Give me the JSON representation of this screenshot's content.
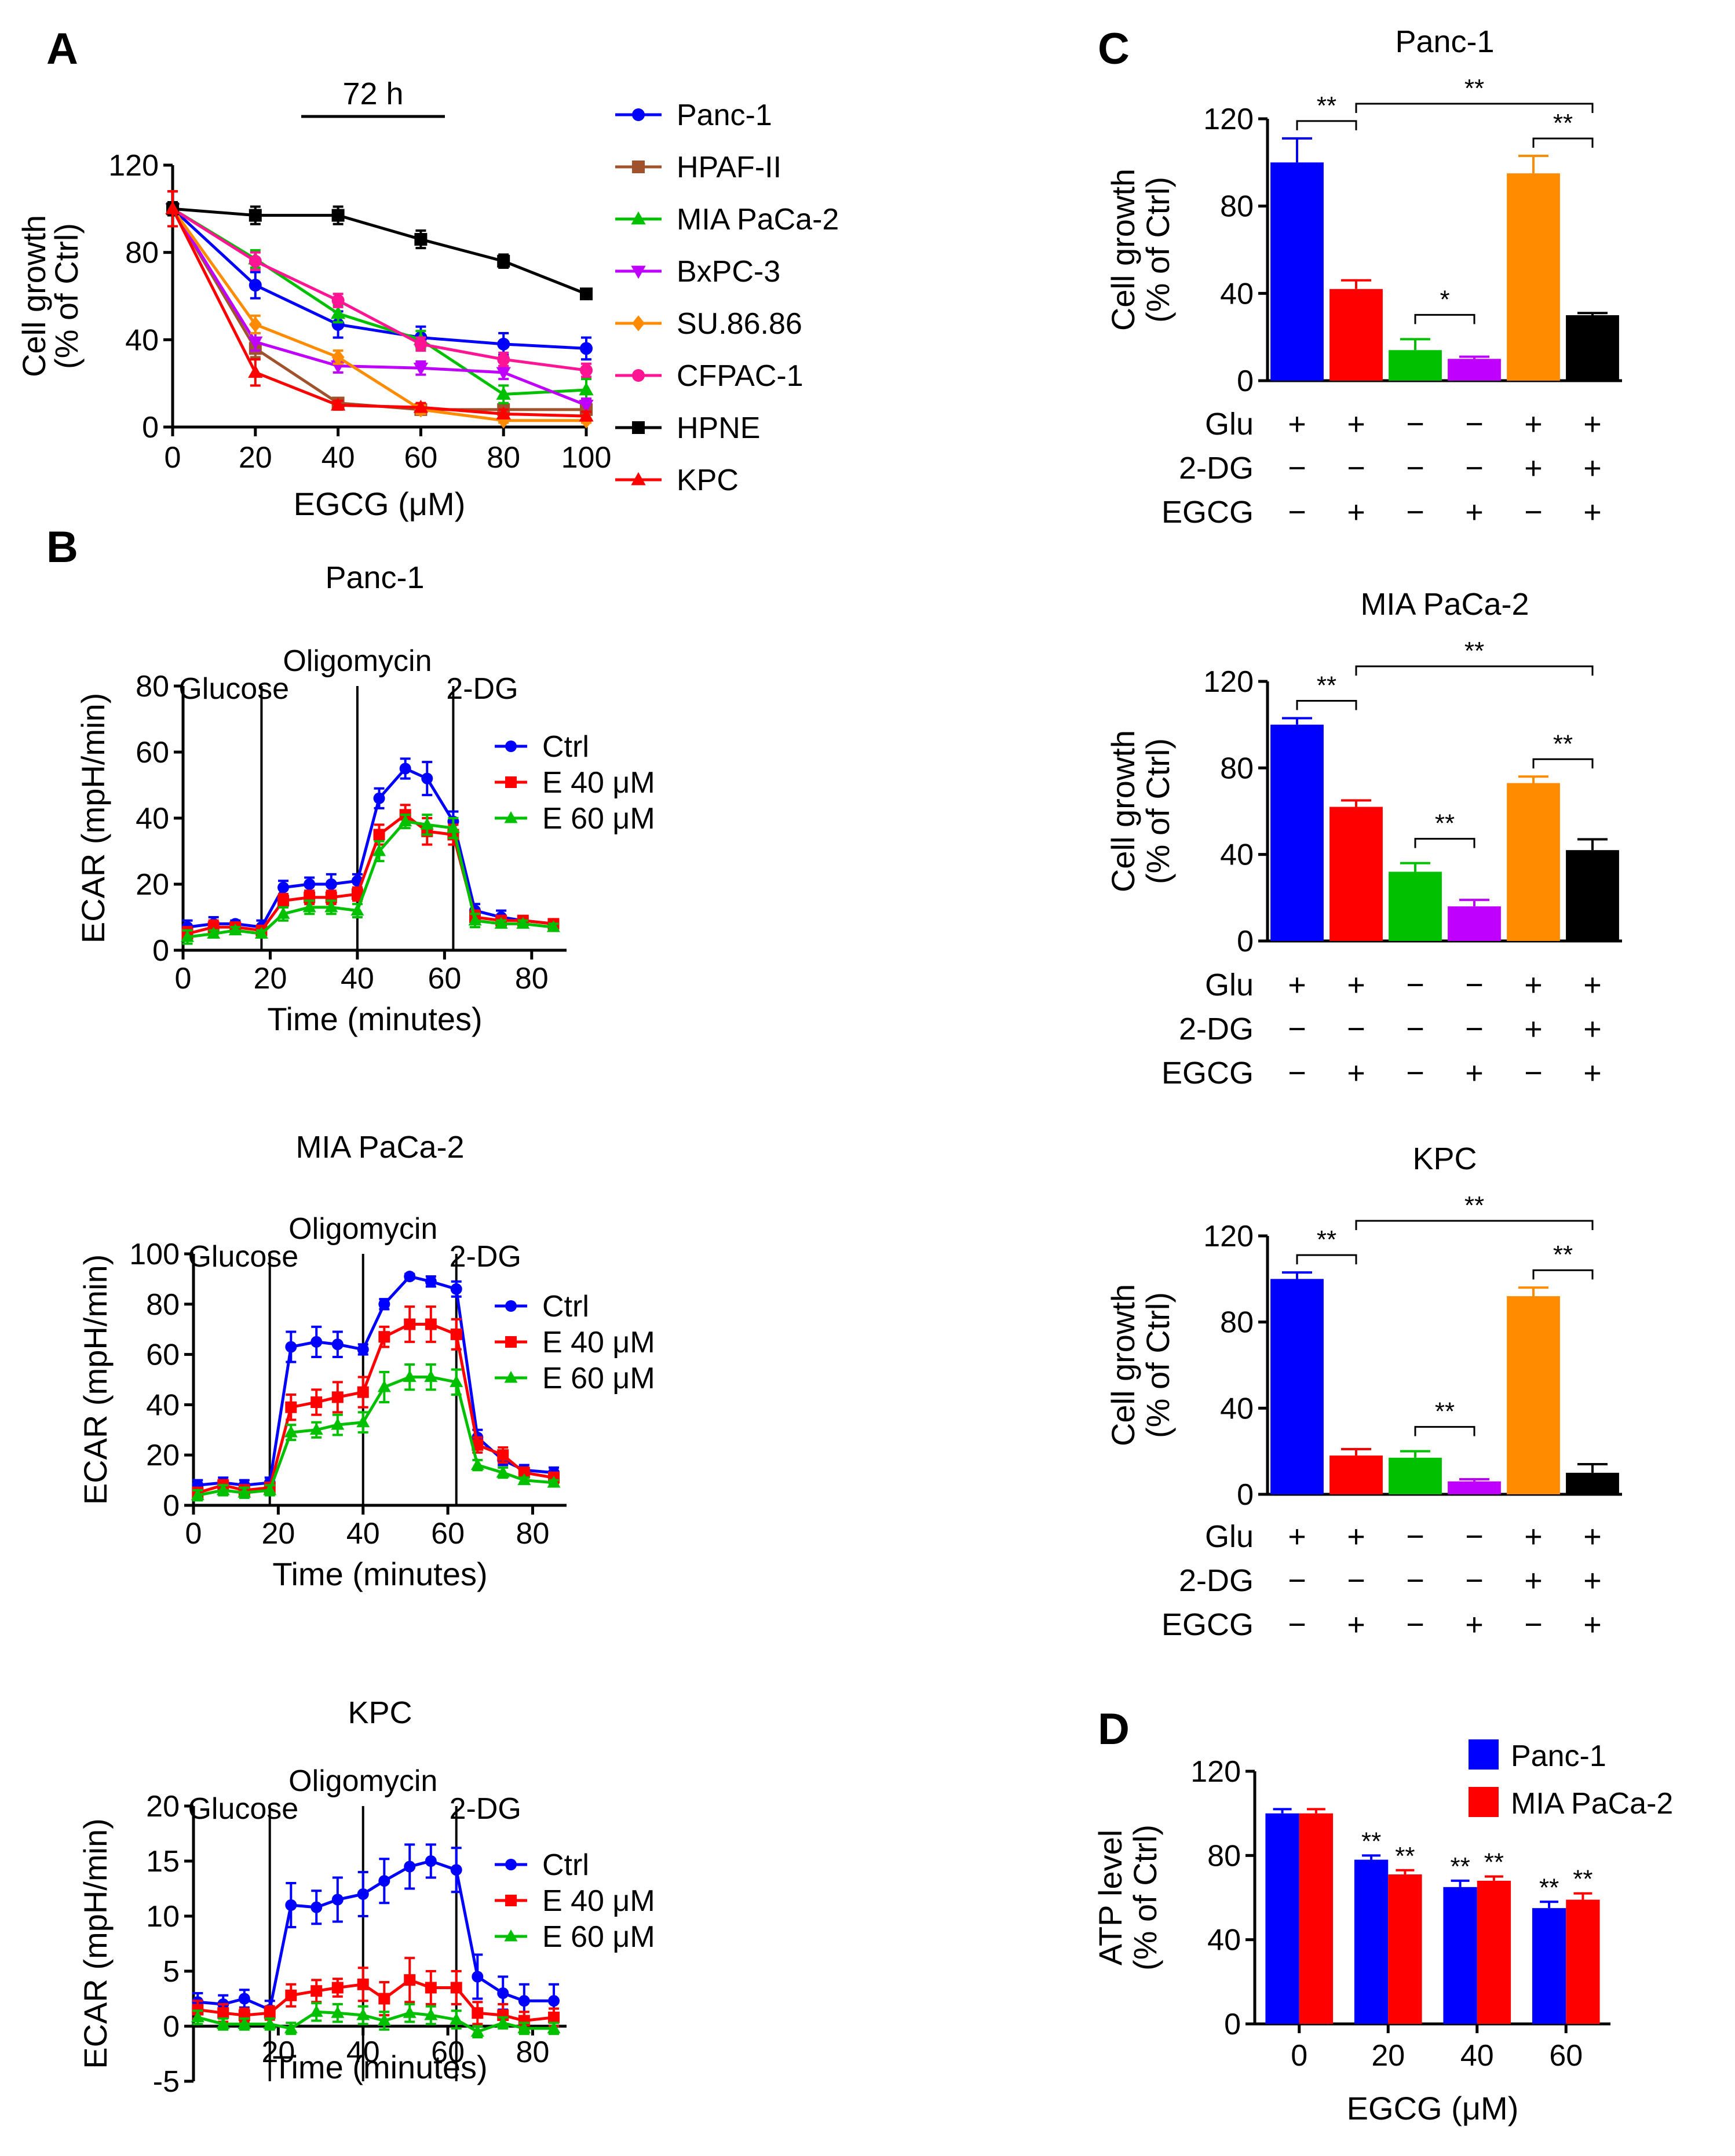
{
  "chart_data": [
    {
      "id": "A",
      "letter": "A",
      "type": "line",
      "annotation": "72 h",
      "xlabel": "EGCG (μM)",
      "ylabel": [
        "Cell growth",
        "(% of Ctrl)"
      ],
      "xlim": [
        0,
        100
      ],
      "ylim": [
        0,
        120
      ],
      "xticks": [
        0,
        20,
        40,
        60,
        80,
        100
      ],
      "yticks": [
        0,
        40,
        80,
        120
      ],
      "x": [
        0,
        20,
        40,
        60,
        80,
        100
      ],
      "legend_position": "right",
      "series": [
        {
          "name": "Panc-1",
          "color": "#0000ff",
          "marker": "circle",
          "values": [
            100,
            65,
            47,
            41,
            38,
            36
          ],
          "err": [
            8,
            6,
            6,
            5,
            5,
            5
          ]
        },
        {
          "name": "HPAF-II",
          "color": "#a0522d",
          "marker": "square",
          "values": [
            100,
            36,
            11,
            8,
            8,
            8
          ],
          "err": [
            8,
            4,
            2,
            2,
            2,
            2
          ]
        },
        {
          "name": "MIA PaCa-2",
          "color": "#00c000",
          "marker": "triangle-up",
          "values": [
            100,
            77,
            52,
            40,
            15,
            17
          ],
          "err": [
            8,
            4,
            4,
            4,
            4,
            5
          ]
        },
        {
          "name": "BxPC-3",
          "color": "#c000ff",
          "marker": "triangle-down",
          "values": [
            100,
            39,
            28,
            27,
            25,
            10
          ],
          "err": [
            8,
            4,
            3,
            3,
            3,
            3
          ]
        },
        {
          "name": "SU.86.86",
          "color": "#ff8c00",
          "marker": "diamond",
          "values": [
            100,
            47,
            32,
            8,
            3,
            3
          ],
          "err": [
            8,
            4,
            3,
            2,
            1,
            1
          ]
        },
        {
          "name": "CFPAC-1",
          "color": "#ff1493",
          "marker": "circle",
          "values": [
            100,
            76,
            58,
            38,
            31,
            26
          ],
          "err": [
            8,
            4,
            3,
            3,
            3,
            3
          ]
        },
        {
          "name": "HPNE",
          "color": "#000000",
          "marker": "square",
          "values": [
            100,
            97,
            97,
            86,
            76,
            61
          ],
          "err": [
            3,
            4,
            4,
            4,
            3,
            2
          ]
        },
        {
          "name": "KPC",
          "color": "#ff0000",
          "marker": "triangle-up",
          "values": [
            100,
            25,
            10,
            9,
            6,
            5
          ],
          "err": [
            8,
            6,
            2,
            2,
            2,
            2
          ]
        }
      ]
    },
    {
      "id": "B1",
      "letter": "B",
      "type": "line",
      "title": "Panc-1",
      "xlabel": "Time (minutes)",
      "ylabel": "ECAR (mpH/min)",
      "xlim": [
        0,
        88
      ],
      "ylim": [
        0,
        80
      ],
      "xticks": [
        0,
        20,
        40,
        60,
        80
      ],
      "yticks": [
        0,
        20,
        40,
        60,
        80
      ],
      "events": [
        {
          "x": 18,
          "label": "Glucose"
        },
        {
          "x": 40,
          "label": "Oligomycin"
        },
        {
          "x": 62,
          "label": "2-DG"
        }
      ],
      "x": [
        1,
        7,
        12,
        18,
        23,
        29,
        34,
        40,
        45,
        51,
        56,
        62,
        67,
        73,
        78,
        85
      ],
      "legend_position": "right",
      "series": [
        {
          "name": "Ctrl",
          "color": "#0000ff",
          "marker": "circle",
          "values": [
            7,
            8,
            8,
            7,
            19,
            20,
            20,
            21,
            46,
            55,
            52,
            39,
            12,
            10,
            9,
            8
          ],
          "err": [
            2,
            2,
            1,
            2,
            2,
            2,
            3,
            2,
            3,
            3,
            5,
            3,
            2,
            2,
            1,
            1
          ]
        },
        {
          "name": "E 40 μM",
          "color": "#ff0000",
          "marker": "square",
          "values": [
            5,
            7,
            7,
            6,
            15,
            16,
            16,
            17,
            35,
            41,
            36,
            35,
            10,
            9,
            9,
            8
          ],
          "err": [
            2,
            2,
            1,
            1,
            2,
            2,
            2,
            2,
            3,
            3,
            4,
            3,
            2,
            1,
            1,
            1
          ]
        },
        {
          "name": "E 60 μM",
          "color": "#00c000",
          "marker": "triangle-up",
          "values": [
            4,
            5,
            6,
            5,
            11,
            13,
            13,
            12,
            30,
            39,
            38,
            37,
            9,
            8,
            8,
            7
          ],
          "err": [
            2,
            1,
            1,
            1,
            2,
            2,
            2,
            2,
            3,
            2,
            3,
            3,
            2,
            1,
            1,
            1
          ]
        }
      ]
    },
    {
      "id": "B2",
      "type": "line",
      "title": "MIA PaCa-2",
      "xlabel": "Time (minutes)",
      "ylabel": "ECAR (mpH/min)",
      "xlim": [
        0,
        88
      ],
      "ylim": [
        0,
        100
      ],
      "xticks": [
        0,
        20,
        40,
        60,
        80
      ],
      "yticks": [
        0,
        20,
        40,
        60,
        80,
        100
      ],
      "events": [
        {
          "x": 18,
          "label": "Glucose"
        },
        {
          "x": 40,
          "label": "Oligomycin"
        },
        {
          "x": 62,
          "label": "2-DG"
        }
      ],
      "x": [
        1,
        7,
        12,
        18,
        23,
        29,
        34,
        40,
        45,
        51,
        56,
        62,
        67,
        73,
        78,
        85
      ],
      "legend_position": "right",
      "series": [
        {
          "name": "Ctrl",
          "color": "#0000ff",
          "marker": "circle",
          "values": [
            8,
            9,
            8,
            9,
            63,
            65,
            64,
            62,
            80,
            91,
            89,
            86,
            27,
            18,
            14,
            13
          ],
          "err": [
            2,
            2,
            2,
            2,
            6,
            6,
            5,
            2,
            2,
            1,
            2,
            3,
            3,
            2,
            2,
            2
          ]
        },
        {
          "name": "E 40 μM",
          "color": "#ff0000",
          "marker": "square",
          "values": [
            5,
            8,
            6,
            7,
            39,
            41,
            43,
            45,
            67,
            72,
            72,
            68,
            24,
            20,
            13,
            11
          ],
          "err": [
            2,
            2,
            2,
            2,
            5,
            5,
            6,
            6,
            4,
            7,
            7,
            6,
            3,
            3,
            2,
            2
          ]
        },
        {
          "name": "E 60 μM",
          "color": "#00c000",
          "marker": "triangle-up",
          "values": [
            4,
            6,
            5,
            6,
            29,
            30,
            32,
            33,
            47,
            51,
            51,
            49,
            16,
            13,
            10,
            9
          ],
          "err": [
            2,
            2,
            2,
            2,
            3,
            3,
            4,
            4,
            6,
            5,
            5,
            5,
            2,
            2,
            1,
            1
          ]
        }
      ]
    },
    {
      "id": "B3",
      "type": "line",
      "title": "KPC",
      "xlabel": "Time (minutes)",
      "ylabel": "ECAR (mpH/min)",
      "xlim": [
        0,
        88
      ],
      "ylim": [
        -5,
        20
      ],
      "xticks": [
        20,
        40,
        60,
        80
      ],
      "yticks": [
        -5,
        0,
        5,
        10,
        15,
        20
      ],
      "events": [
        {
          "x": 18,
          "label": "Glucose"
        },
        {
          "x": 40,
          "label": "Oligomycin"
        },
        {
          "x": 62,
          "label": "2-DG"
        }
      ],
      "x": [
        1,
        7,
        12,
        18,
        23,
        29,
        34,
        40,
        45,
        51,
        56,
        62,
        67,
        73,
        78,
        85
      ],
      "legend_position": "right",
      "series": [
        {
          "name": "Ctrl",
          "color": "#0000ff",
          "marker": "circle",
          "values": [
            2.2,
            2.0,
            2.5,
            1.5,
            11,
            10.8,
            11.5,
            12,
            13.2,
            14.5,
            15,
            14.2,
            4.5,
            3,
            2.3,
            2.3
          ],
          "err": [
            0.8,
            0.8,
            0.8,
            0.8,
            2,
            1.5,
            2,
            2,
            2,
            2,
            1.5,
            2,
            2,
            1.5,
            1.5,
            1.5
          ]
        },
        {
          "name": "E 40 μM",
          "color": "#ff0000",
          "marker": "square",
          "values": [
            1.5,
            1.2,
            1.0,
            1.2,
            2.8,
            3.2,
            3.5,
            3.8,
            2.5,
            4.2,
            3.5,
            3.5,
            1.2,
            1.0,
            0.5,
            0.8
          ],
          "err": [
            0.8,
            0.8,
            0.6,
            0.6,
            1,
            1,
            0.8,
            1.5,
            1.5,
            2,
            1.5,
            1.5,
            1,
            1,
            0.8,
            0.8
          ]
        },
        {
          "name": "E 60 μM",
          "color": "#00c000",
          "marker": "triangle-up",
          "values": [
            0.8,
            0.2,
            0.2,
            0.2,
            -0.2,
            1.3,
            1.2,
            1.0,
            0.5,
            1.2,
            1.0,
            0.6,
            -0.5,
            0.3,
            -0.2,
            -0.2
          ],
          "err": [
            0.6,
            0.5,
            0.5,
            0.5,
            0.5,
            0.8,
            0.8,
            0.8,
            0.8,
            0.8,
            0.8,
            0.8,
            0.5,
            0.5,
            0.5,
            0.5
          ]
        }
      ]
    },
    {
      "id": "C1",
      "letter": "C",
      "type": "bar",
      "title": "Panc-1",
      "ylabel": [
        "Cell growth",
        "(% of Ctrl)"
      ],
      "ylim": [
        0,
        120
      ],
      "yticks": [
        0,
        40,
        80,
        120
      ],
      "values": [
        100,
        42,
        14,
        10,
        95,
        30
      ],
      "err": [
        11,
        4,
        5,
        1,
        8,
        1
      ],
      "colors": [
        "#0000ff",
        "#ff0000",
        "#00c000",
        "#c000ff",
        "#ff8c00",
        "#000000"
      ],
      "conditions": {
        "Glu": [
          "+",
          "+",
          "−",
          "−",
          "+",
          "+"
        ],
        "2-DG": [
          "−",
          "−",
          "−",
          "−",
          "+",
          "+"
        ],
        "EGCG": [
          "−",
          "+",
          "−",
          "+",
          "−",
          "+"
        ]
      },
      "condition_labels": [
        "Glu",
        "2-DG",
        "EGCG"
      ],
      "significance": [
        {
          "from": 0,
          "to": 1,
          "label": "**",
          "level": 1
        },
        {
          "from": 1,
          "to": 5,
          "label": "**",
          "level": 2
        },
        {
          "from": 4,
          "to": 5,
          "label": "**",
          "level": 1
        },
        {
          "from": 2,
          "to": 3,
          "label": "*",
          "level": 0
        }
      ]
    },
    {
      "id": "C2",
      "type": "bar",
      "title": "MIA PaCa-2",
      "ylabel": [
        "Cell growth",
        "(% of Ctrl)"
      ],
      "ylim": [
        0,
        120
      ],
      "yticks": [
        0,
        40,
        80,
        120
      ],
      "values": [
        100,
        62,
        32,
        16,
        73,
        42
      ],
      "err": [
        3,
        3,
        4,
        3,
        3,
        5
      ],
      "colors": [
        "#0000ff",
        "#ff0000",
        "#00c000",
        "#c000ff",
        "#ff8c00",
        "#000000"
      ],
      "conditions": {
        "Glu": [
          "+",
          "+",
          "−",
          "−",
          "+",
          "+"
        ],
        "2-DG": [
          "−",
          "−",
          "−",
          "−",
          "+",
          "+"
        ],
        "EGCG": [
          "−",
          "+",
          "−",
          "+",
          "−",
          "+"
        ]
      },
      "condition_labels": [
        "Glu",
        "2-DG",
        "EGCG"
      ],
      "significance": [
        {
          "from": 0,
          "to": 1,
          "label": "**",
          "level": 1
        },
        {
          "from": 1,
          "to": 5,
          "label": "**",
          "level": 2
        },
        {
          "from": 4,
          "to": 5,
          "label": "**",
          "level": 1
        },
        {
          "from": 2,
          "to": 3,
          "label": "**",
          "level": 0
        }
      ]
    },
    {
      "id": "C3",
      "type": "bar",
      "title": "KPC",
      "ylabel": [
        "Cell growth",
        "(% of Ctrl)"
      ],
      "ylim": [
        0,
        120
      ],
      "yticks": [
        0,
        40,
        80,
        120
      ],
      "values": [
        100,
        18,
        17,
        6,
        92,
        10
      ],
      "err": [
        3,
        3,
        3,
        1,
        4,
        4
      ],
      "colors": [
        "#0000ff",
        "#ff0000",
        "#00c000",
        "#c000ff",
        "#ff8c00",
        "#000000"
      ],
      "conditions": {
        "Glu": [
          "+",
          "+",
          "−",
          "−",
          "+",
          "+"
        ],
        "2-DG": [
          "−",
          "−",
          "−",
          "−",
          "+",
          "+"
        ],
        "EGCG": [
          "−",
          "+",
          "−",
          "+",
          "−",
          "+"
        ]
      },
      "condition_labels": [
        "Glu",
        "2-DG",
        "EGCG"
      ],
      "significance": [
        {
          "from": 0,
          "to": 1,
          "label": "**",
          "level": 1
        },
        {
          "from": 1,
          "to": 5,
          "label": "**",
          "level": 2
        },
        {
          "from": 4,
          "to": 5,
          "label": "**",
          "level": 1
        },
        {
          "from": 2,
          "to": 3,
          "label": "**",
          "level": 0
        }
      ]
    },
    {
      "id": "D",
      "letter": "D",
      "type": "bar",
      "xlabel": "EGCG (μM)",
      "ylabel": [
        "ATP level",
        "(% of Ctrl)"
      ],
      "categories": [
        "0",
        "20",
        "40",
        "60"
      ],
      "ylim": [
        0,
        120
      ],
      "yticks": [
        0,
        40,
        80,
        120
      ],
      "legend_position": "top-right",
      "series": [
        {
          "name": "Panc-1",
          "color": "#0000ff",
          "values": [
            100,
            78,
            65,
            55
          ],
          "err": [
            2,
            2,
            3,
            3
          ],
          "sig": [
            "",
            "**",
            "**",
            "**"
          ]
        },
        {
          "name": "MIA PaCa-2",
          "color": "#ff0000",
          "values": [
            100,
            71,
            68,
            59
          ],
          "err": [
            2,
            2,
            2,
            3
          ],
          "sig": [
            "",
            "**",
            "**",
            "**"
          ]
        }
      ]
    }
  ]
}
